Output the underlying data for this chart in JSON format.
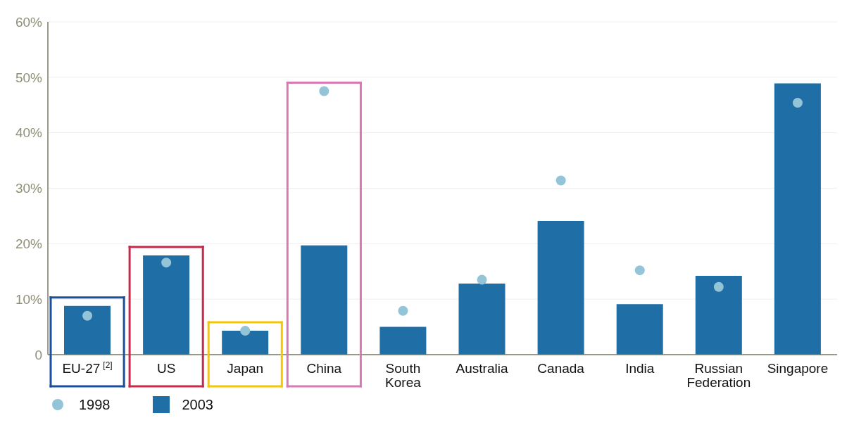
{
  "chart_data": {
    "type": "bar",
    "categories": [
      "EU-27$^{[2]}$",
      "US",
      "Japan",
      "China",
      "South Korea",
      "Australia",
      "Canada",
      "India",
      "Russian Federation",
      "Singapore"
    ],
    "series": [
      {
        "name": "1998",
        "type": "scatter",
        "color": "#93c4d8",
        "values": [
          7.0,
          16.6,
          4.3,
          47.5,
          7.9,
          13.5,
          31.4,
          15.2,
          12.2,
          45.4
        ]
      },
      {
        "name": "2003",
        "color": "#1f6ea6",
        "values": [
          8.8,
          17.9,
          4.3,
          19.7,
          5.0,
          12.8,
          24.1,
          9.1,
          14.2,
          48.9
        ]
      }
    ],
    "ylim": [
      0,
      60
    ],
    "yticks": [
      0,
      {
        "value": 10,
        "label": "10%"
      },
      {
        "value": 20,
        "label": "20%"
      },
      {
        "value": 30,
        "label": "30%"
      },
      {
        "value": 40,
        "label": "40%"
      },
      {
        "value": 50,
        "label": "50%"
      },
      {
        "value": 60,
        "label": "60%"
      }
    ],
    "grid": "y",
    "legend": "bottom left",
    "marker": "circle"
  }
}
